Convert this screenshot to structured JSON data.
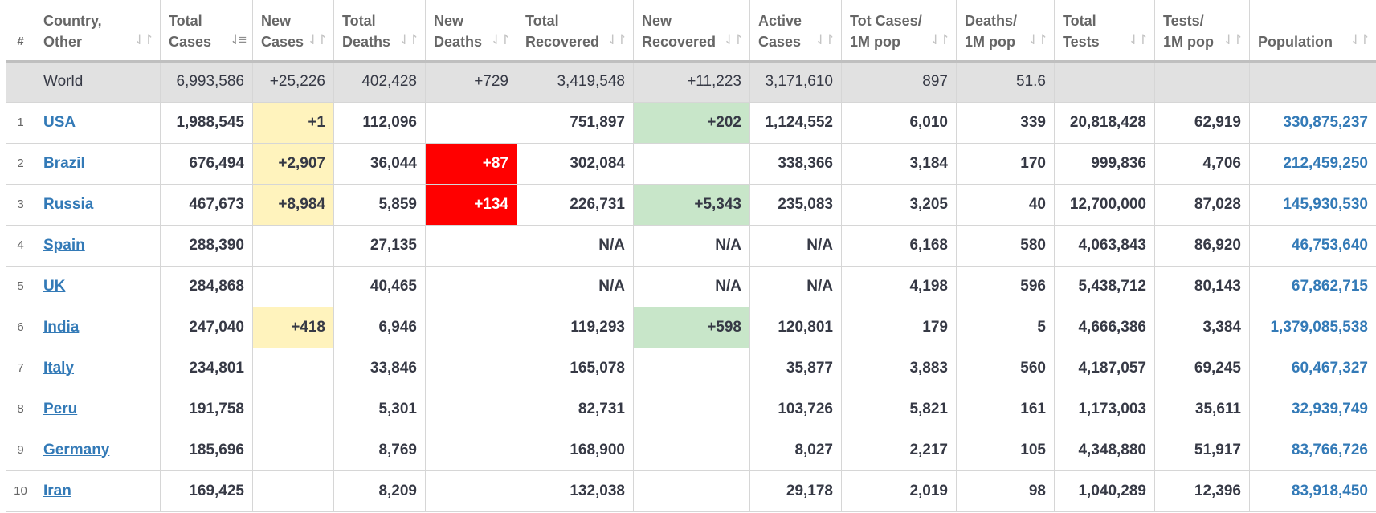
{
  "headers": [
    {
      "label": [
        "#"
      ]
    },
    {
      "label": [
        "Country,",
        "Other"
      ],
      "sort": "⇃↾"
    },
    {
      "label": [
        "Total",
        "Cases"
      ],
      "sort": "⇃≡"
    },
    {
      "label": [
        "New",
        "Cases"
      ],
      "sort": "⇃↾"
    },
    {
      "label": [
        "Total",
        "Deaths"
      ],
      "sort": "⇃↾"
    },
    {
      "label": [
        "New",
        "Deaths"
      ],
      "sort": "⇃↾"
    },
    {
      "label": [
        "Total",
        "Recovered"
      ],
      "sort": "⇃↾"
    },
    {
      "label": [
        "New",
        "Recovered"
      ],
      "sort": "⇃↾"
    },
    {
      "label": [
        "Active",
        "Cases"
      ],
      "sort": "⇃↾"
    },
    {
      "label": [
        "Tot Cases/",
        "1M pop"
      ],
      "sort": "⇃↾"
    },
    {
      "label": [
        "Deaths/",
        "1M pop"
      ],
      "sort": "⇃↾"
    },
    {
      "label": [
        "Total",
        "Tests"
      ],
      "sort": "⇃↾"
    },
    {
      "label": [
        "Tests/",
        "1M pop"
      ],
      "sort": "⇃↾"
    },
    {
      "label": [
        "",
        "Population"
      ],
      "sort": "⇃↾"
    }
  ],
  "world": {
    "name": "World",
    "total_cases": "6,993,586",
    "new_cases": "+25,226",
    "total_deaths": "402,428",
    "new_deaths": "+729",
    "total_recovered": "3,419,548",
    "new_recovered": "+11,223",
    "active_cases": "3,171,610",
    "cases_per_1m": "897",
    "deaths_per_1m": "51.6",
    "total_tests": "",
    "tests_per_1m": "",
    "population": ""
  },
  "rows": [
    {
      "idx": "1",
      "name": "USA",
      "total_cases": "1,988,545",
      "new_cases": "+1",
      "total_deaths": "112,096",
      "new_deaths": "",
      "total_recovered": "751,897",
      "new_recovered": "+202",
      "active_cases": "1,124,552",
      "cases_per_1m": "6,010",
      "deaths_per_1m": "339",
      "total_tests": "20,818,428",
      "tests_per_1m": "62,919",
      "population": "330,875,237"
    },
    {
      "idx": "2",
      "name": "Brazil",
      "total_cases": "676,494",
      "new_cases": "+2,907",
      "total_deaths": "36,044",
      "new_deaths": "+87",
      "total_recovered": "302,084",
      "new_recovered": "",
      "active_cases": "338,366",
      "cases_per_1m": "3,184",
      "deaths_per_1m": "170",
      "total_tests": "999,836",
      "tests_per_1m": "4,706",
      "population": "212,459,250"
    },
    {
      "idx": "3",
      "name": "Russia",
      "total_cases": "467,673",
      "new_cases": "+8,984",
      "total_deaths": "5,859",
      "new_deaths": "+134",
      "total_recovered": "226,731",
      "new_recovered": "+5,343",
      "active_cases": "235,083",
      "cases_per_1m": "3,205",
      "deaths_per_1m": "40",
      "total_tests": "12,700,000",
      "tests_per_1m": "87,028",
      "population": "145,930,530"
    },
    {
      "idx": "4",
      "name": "Spain",
      "total_cases": "288,390",
      "new_cases": "",
      "total_deaths": "27,135",
      "new_deaths": "",
      "total_recovered": "N/A",
      "new_recovered": "N/A",
      "active_cases": "N/A",
      "cases_per_1m": "6,168",
      "deaths_per_1m": "580",
      "total_tests": "4,063,843",
      "tests_per_1m": "86,920",
      "population": "46,753,640"
    },
    {
      "idx": "5",
      "name": "UK",
      "total_cases": "284,868",
      "new_cases": "",
      "total_deaths": "40,465",
      "new_deaths": "",
      "total_recovered": "N/A",
      "new_recovered": "N/A",
      "active_cases": "N/A",
      "cases_per_1m": "4,198",
      "deaths_per_1m": "596",
      "total_tests": "5,438,712",
      "tests_per_1m": "80,143",
      "population": "67,862,715"
    },
    {
      "idx": "6",
      "name": "India",
      "total_cases": "247,040",
      "new_cases": "+418",
      "total_deaths": "6,946",
      "new_deaths": "",
      "total_recovered": "119,293",
      "new_recovered": "+598",
      "active_cases": "120,801",
      "cases_per_1m": "179",
      "deaths_per_1m": "5",
      "total_tests": "4,666,386",
      "tests_per_1m": "3,384",
      "population": "1,379,085,538"
    },
    {
      "idx": "7",
      "name": "Italy",
      "total_cases": "234,801",
      "new_cases": "",
      "total_deaths": "33,846",
      "new_deaths": "",
      "total_recovered": "165,078",
      "new_recovered": "",
      "active_cases": "35,877",
      "cases_per_1m": "3,883",
      "deaths_per_1m": "560",
      "total_tests": "4,187,057",
      "tests_per_1m": "69,245",
      "population": "60,467,327"
    },
    {
      "idx": "8",
      "name": "Peru",
      "total_cases": "191,758",
      "new_cases": "",
      "total_deaths": "5,301",
      "new_deaths": "",
      "total_recovered": "82,731",
      "new_recovered": "",
      "active_cases": "103,726",
      "cases_per_1m": "5,821",
      "deaths_per_1m": "161",
      "total_tests": "1,173,003",
      "tests_per_1m": "35,611",
      "population": "32,939,749"
    },
    {
      "idx": "9",
      "name": "Germany",
      "total_cases": "185,696",
      "new_cases": "",
      "total_deaths": "8,769",
      "new_deaths": "",
      "total_recovered": "168,900",
      "new_recovered": "",
      "active_cases": "8,027",
      "cases_per_1m": "2,217",
      "deaths_per_1m": "105",
      "total_tests": "4,348,880",
      "tests_per_1m": "51,917",
      "population": "83,766,726"
    },
    {
      "idx": "10",
      "name": "Iran",
      "total_cases": "169,425",
      "new_cases": "",
      "total_deaths": "8,209",
      "new_deaths": "",
      "total_recovered": "132,038",
      "new_recovered": "",
      "active_cases": "29,178",
      "cases_per_1m": "2,019",
      "deaths_per_1m": "98",
      "total_tests": "1,040,289",
      "tests_per_1m": "12,396",
      "population": "83,918,450"
    }
  ],
  "colors": {
    "new_cases_bg": "#fff3bd",
    "new_deaths_bg": "#ff0000",
    "new_recovered_bg": "#c8e6c9",
    "link": "#337ab7",
    "world_row_bg": "#e1e1e1"
  }
}
